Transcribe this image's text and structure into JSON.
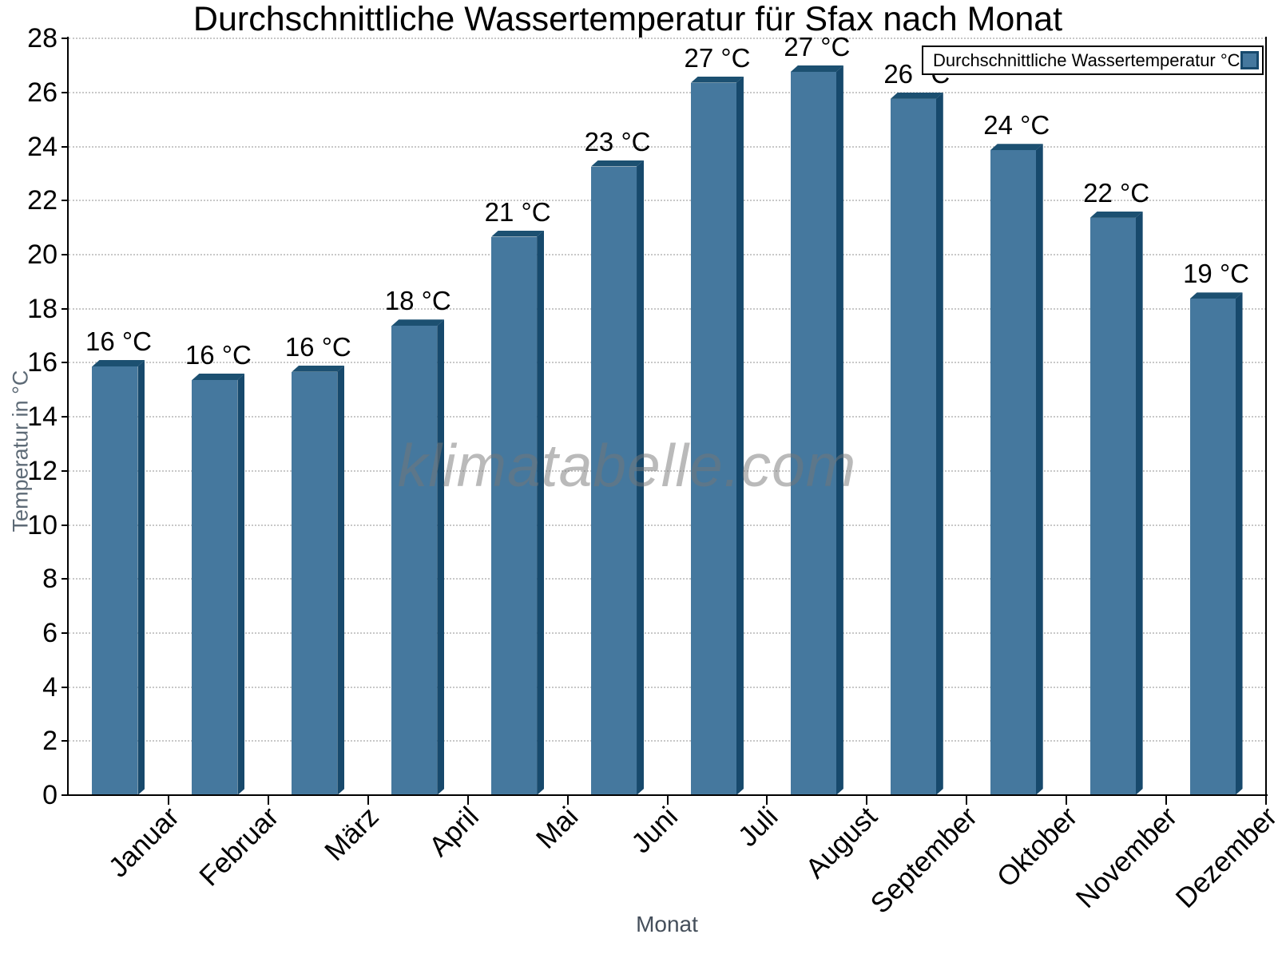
{
  "watermark": "klimatabelle.com",
  "chart_data": {
    "type": "bar",
    "title": "Durchschnittliche Wassertemperatur für Sfax nach Monat",
    "categories": [
      "Januar",
      "Februar",
      "März",
      "April",
      "Mai",
      "Juni",
      "Juli",
      "August",
      "September",
      "Oktober",
      "November",
      "Dezember"
    ],
    "values": [
      16.1,
      15.6,
      15.9,
      17.6,
      20.9,
      23.5,
      26.6,
      27.0,
      26.0,
      24.1,
      21.6,
      18.6
    ],
    "value_labels": [
      "16 °C",
      "16 °C",
      "16 °C",
      "18 °C",
      "21 °C",
      "23 °C",
      "27 °C",
      "27 °C",
      "26 °C",
      "24 °C",
      "22 °C",
      "19 °C"
    ],
    "xlabel": "Monat",
    "ylabel": "Temperatur in °C",
    "ylim": [
      0,
      28
    ],
    "ytick_step": 2,
    "yticks": [
      0,
      2,
      4,
      6,
      8,
      10,
      12,
      14,
      16,
      18,
      20,
      22,
      24,
      26,
      28
    ],
    "grid": "horizontal-dotted",
    "legend": {
      "label": "Durchschnittliche Wassertemperatur °C",
      "position": "top-right"
    },
    "colors": {
      "bar_face": "#45789E",
      "bar_top": "#1C5071",
      "bar_side": "#17496C",
      "grid": "#C8C8C8",
      "axis": "#000000",
      "axis_title": "#5D6A76",
      "watermark": "#BDBDBD",
      "background": "#FFFFFF"
    }
  }
}
